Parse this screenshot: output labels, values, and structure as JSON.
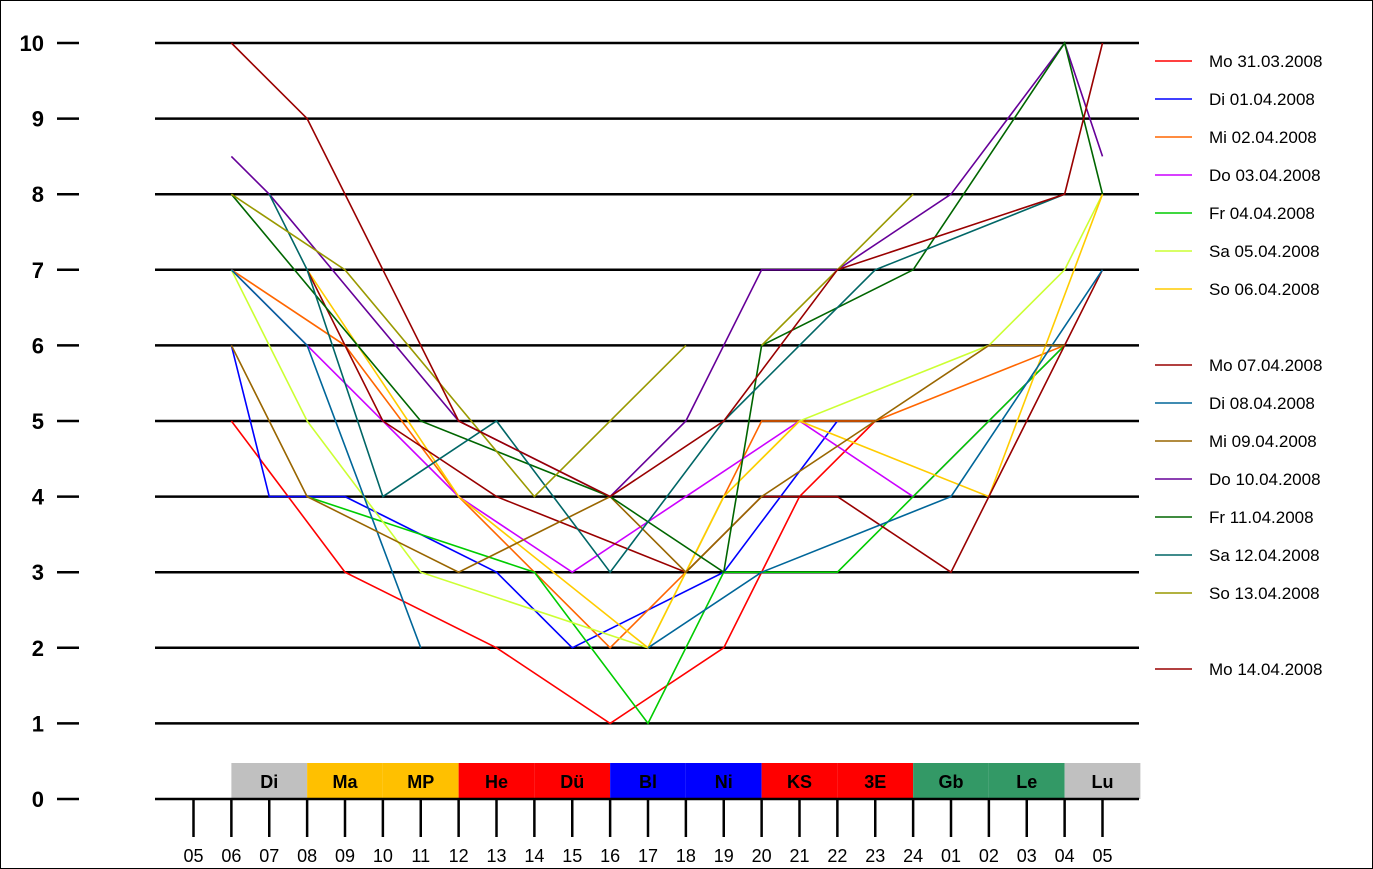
{
  "chart_data": {
    "type": "line",
    "title": "",
    "xlabel": "",
    "ylabel": "",
    "ylim": [
      0,
      10
    ],
    "y_ticks": [
      "0",
      "1",
      "2",
      "3",
      "4",
      "5",
      "6",
      "7",
      "8",
      "9",
      "10"
    ],
    "x_ticks": [
      "05",
      "06",
      "07",
      "08",
      "09",
      "10",
      "11",
      "12",
      "13",
      "14",
      "15",
      "16",
      "17",
      "18",
      "19",
      "20",
      "21",
      "22",
      "23",
      "24",
      "01",
      "02",
      "03",
      "04",
      "05"
    ],
    "grid": "horizontal",
    "legend_position": "right",
    "bands": [
      {
        "label": "Di",
        "start": 1,
        "end": 3,
        "color": "#c0c0c0"
      },
      {
        "label": "Ma",
        "start": 3,
        "end": 5,
        "color": "#ffc000"
      },
      {
        "label": "MP",
        "start": 5,
        "end": 7,
        "color": "#ffc000"
      },
      {
        "label": "He",
        "start": 7,
        "end": 9,
        "color": "#ff0000"
      },
      {
        "label": "Dü",
        "start": 9,
        "end": 11,
        "color": "#ff0000"
      },
      {
        "label": "Bl",
        "start": 11,
        "end": 13,
        "color": "#0000ff"
      },
      {
        "label": "Ni",
        "start": 13,
        "end": 15,
        "color": "#0000ff"
      },
      {
        "label": "KS",
        "start": 15,
        "end": 17,
        "color": "#ff0000"
      },
      {
        "label": "3E",
        "start": 17,
        "end": 19,
        "color": "#ff0000"
      },
      {
        "label": "Gb",
        "start": 19,
        "end": 21,
        "color": "#339966"
      },
      {
        "label": "Le",
        "start": 21,
        "end": 23,
        "color": "#339966"
      },
      {
        "label": "Lu",
        "start": 23,
        "end": 25,
        "color": "#c0c0c0"
      }
    ],
    "series": [
      {
        "name": "Mo 31.03.2008",
        "color": "#ff0000",
        "points": [
          [
            1,
            5
          ],
          [
            4,
            3
          ],
          [
            8,
            2
          ],
          [
            11,
            1
          ],
          [
            14,
            2
          ],
          [
            16,
            4
          ],
          [
            18,
            5
          ]
        ]
      },
      {
        "name": "Di 01.04.2008",
        "color": "#0000ff",
        "points": [
          [
            1,
            6
          ],
          [
            2,
            4
          ],
          [
            4,
            4
          ],
          [
            8,
            3
          ],
          [
            10,
            2
          ],
          [
            14,
            3
          ],
          [
            17,
            5
          ]
        ]
      },
      {
        "name": "Mi 02.04.2008",
        "color": "#ff6600",
        "points": [
          [
            1,
            7
          ],
          [
            4,
            6
          ],
          [
            7,
            4
          ],
          [
            11,
            2
          ],
          [
            13,
            3
          ],
          [
            15,
            5
          ],
          [
            18,
            5
          ],
          [
            23,
            6
          ]
        ]
      },
      {
        "name": "Do 03.04.2008",
        "color": "#cc00ff",
        "points": [
          [
            1,
            7
          ],
          [
            7,
            4
          ],
          [
            10,
            3
          ],
          [
            13,
            4
          ],
          [
            16,
            5
          ],
          [
            19,
            4
          ],
          [
            23,
            6
          ]
        ]
      },
      {
        "name": "Fr 04.04.2008",
        "color": "#00cc00",
        "points": [
          [
            3,
            4
          ],
          [
            9,
            3
          ],
          [
            12,
            1
          ],
          [
            14,
            3
          ],
          [
            17,
            3
          ],
          [
            19,
            4
          ],
          [
            23,
            6
          ]
        ]
      },
      {
        "name": "Sa 05.04.2008",
        "color": "#ccff33",
        "points": [
          [
            1,
            7
          ],
          [
            3,
            5
          ],
          [
            6,
            3
          ],
          [
            12,
            2
          ],
          [
            14,
            4
          ],
          [
            16,
            5
          ],
          [
            21,
            6
          ],
          [
            23,
            7
          ],
          [
            24,
            8
          ]
        ]
      },
      {
        "name": "So 06.04.2008",
        "color": "#ffcc00",
        "points": [
          [
            3,
            7
          ],
          [
            7,
            4
          ],
          [
            12,
            2
          ],
          [
            14,
            4
          ],
          [
            16,
            5
          ],
          [
            21,
            4
          ],
          [
            24,
            8
          ]
        ]
      },
      {
        "name": "Mo 07.04.2008",
        "color": "#990000",
        "points": [
          [
            3,
            7
          ],
          [
            5,
            5
          ],
          [
            8,
            4
          ],
          [
            13,
            3
          ],
          [
            15,
            4
          ],
          [
            17,
            4
          ],
          [
            20,
            3
          ],
          [
            23,
            6
          ],
          [
            24,
            7
          ]
        ]
      },
      {
        "name": "Di 08.04.2008",
        "color": "#006699",
        "points": [
          [
            1,
            7
          ],
          [
            3,
            6
          ],
          [
            6,
            2
          ]
        ]
      },
      {
        "name": "Di 08.04.2008 (2)",
        "color": "#006699",
        "points": [
          [
            12,
            2
          ],
          [
            15,
            3
          ],
          [
            20,
            4
          ],
          [
            24,
            7
          ]
        ]
      },
      {
        "name": "Mi 09.04.2008",
        "color": "#996600",
        "points": [
          [
            1,
            6
          ],
          [
            3,
            4
          ],
          [
            7,
            3
          ],
          [
            11,
            4
          ],
          [
            13,
            3
          ],
          [
            15,
            4
          ],
          [
            18,
            5
          ],
          [
            21,
            6
          ],
          [
            23,
            6
          ]
        ]
      },
      {
        "name": "Do 10.04.2008",
        "color": "#660099",
        "points": [
          [
            1,
            8.5
          ],
          [
            2,
            8
          ],
          [
            7,
            5
          ],
          [
            11,
            4
          ],
          [
            13,
            5
          ],
          [
            15,
            7
          ],
          [
            17,
            7
          ],
          [
            20,
            8
          ],
          [
            23,
            10
          ],
          [
            24,
            8.5
          ]
        ]
      },
      {
        "name": "Fr 11.04.2008",
        "color": "#006600",
        "points": [
          [
            1,
            8
          ],
          [
            6,
            5
          ],
          [
            11,
            4
          ],
          [
            14,
            3
          ],
          [
            15,
            6
          ],
          [
            19,
            7
          ],
          [
            23,
            10
          ],
          [
            24,
            8
          ]
        ]
      },
      {
        "name": "Sa 12.04.2008",
        "color": "#006666",
        "points": [
          [
            2,
            8
          ],
          [
            3,
            7
          ],
          [
            5,
            4
          ],
          [
            8,
            5
          ],
          [
            11,
            3
          ],
          [
            14,
            5
          ],
          [
            18,
            7
          ],
          [
            23,
            8
          ]
        ]
      },
      {
        "name": "So 13.04.2008",
        "color": "#999900",
        "points": [
          [
            1,
            8
          ],
          [
            4,
            7
          ],
          [
            9,
            4
          ],
          [
            13,
            6
          ]
        ]
      },
      {
        "name": "So 13.04.2008 (2)",
        "color": "#999900",
        "points": [
          [
            15,
            6
          ],
          [
            19,
            8
          ]
        ]
      },
      {
        "name": "Mo 14.04.2008",
        "color": "#990000",
        "points": [
          [
            1,
            10
          ],
          [
            3,
            9
          ],
          [
            5,
            7
          ],
          [
            7,
            5
          ],
          [
            11,
            4
          ],
          [
            14,
            5
          ],
          [
            17,
            7
          ],
          [
            23,
            8
          ],
          [
            24,
            10
          ]
        ]
      }
    ],
    "legend": [
      {
        "label": "Mo 31.03.2008",
        "color": "#ff0000"
      },
      {
        "label": "Di 01.04.2008",
        "color": "#0000ff"
      },
      {
        "label": "Mi 02.04.2008",
        "color": "#ff6600"
      },
      {
        "label": "Do 03.04.2008",
        "color": "#cc00ff"
      },
      {
        "label": "Fr 04.04.2008",
        "color": "#00cc00"
      },
      {
        "label": "Sa 05.04.2008",
        "color": "#ccff33"
      },
      {
        "label": "So 06.04.2008",
        "color": "#ffcc00"
      },
      {
        "label": "",
        "color": ""
      },
      {
        "label": "Mo 07.04.2008",
        "color": "#990000"
      },
      {
        "label": "Di 08.04.2008",
        "color": "#006699"
      },
      {
        "label": "Mi 09.04.2008",
        "color": "#996600"
      },
      {
        "label": "Do 10.04.2008",
        "color": "#660099"
      },
      {
        "label": "Fr 11.04.2008",
        "color": "#006600"
      },
      {
        "label": "Sa 12.04.2008",
        "color": "#006666"
      },
      {
        "label": "So 13.04.2008",
        "color": "#999900"
      },
      {
        "label": "",
        "color": ""
      },
      {
        "label": "Mo 14.04.2008",
        "color": "#990000"
      }
    ]
  }
}
